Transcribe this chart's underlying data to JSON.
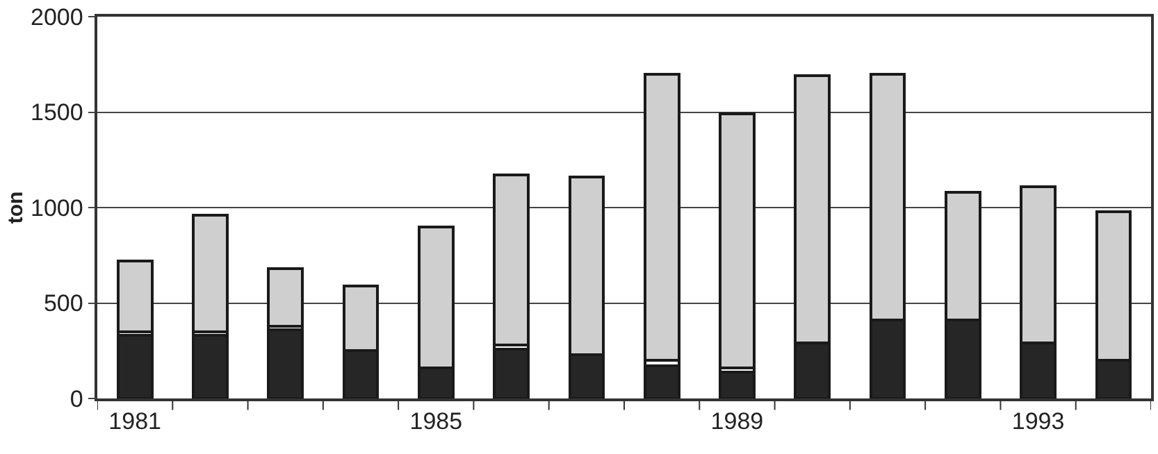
{
  "chart_data": {
    "type": "bar",
    "stacked": true,
    "ylabel": "ton",
    "categories": [
      "1981",
      null,
      null,
      null,
      "1985",
      null,
      null,
      null,
      "1989",
      null,
      null,
      null,
      "1993",
      null
    ],
    "series": [
      {
        "color": "#262626",
        "values": [
          330,
          330,
          360,
          250,
          160,
          260,
          230,
          170,
          140,
          290,
          410,
          410,
          290,
          200
        ]
      },
      {
        "color": "#ffffff",
        "values": [
          20,
          20,
          20,
          0,
          0,
          20,
          0,
          30,
          20,
          0,
          0,
          0,
          0,
          0
        ]
      },
      {
        "color": "#cfcfcf",
        "values": [
          370,
          610,
          300,
          340,
          740,
          890,
          930,
          1500,
          1330,
          1400,
          1290,
          670,
          820,
          780
        ]
      }
    ],
    "ylim": [
      0,
      2000
    ],
    "yticks": [
      0,
      500,
      1000,
      1500,
      2000
    ],
    "grid": "y"
  }
}
